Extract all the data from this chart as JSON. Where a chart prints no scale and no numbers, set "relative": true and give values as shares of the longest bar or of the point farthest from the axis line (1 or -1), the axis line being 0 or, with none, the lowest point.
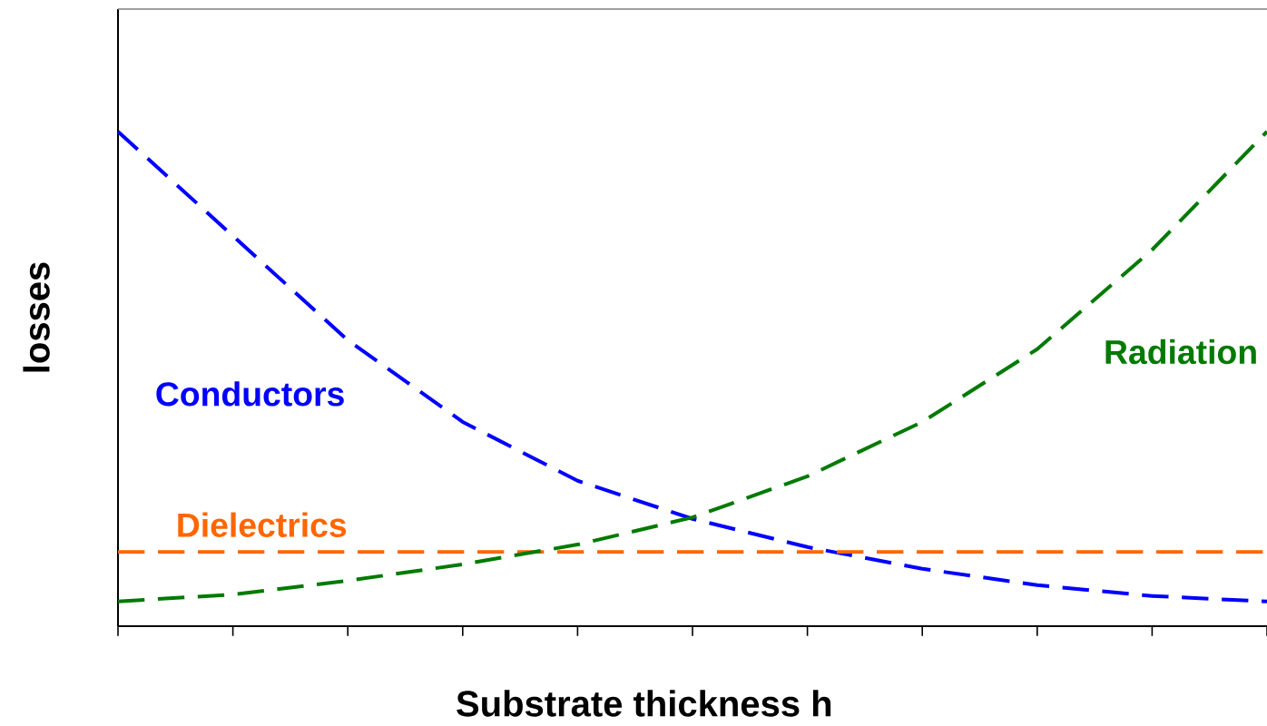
{
  "chart_data": {
    "type": "line",
    "relative": true,
    "xlabel": "Substrate thickness h",
    "ylabel": "losses",
    "categories": [
      null,
      null,
      null,
      null,
      null,
      null,
      null,
      null,
      null,
      null,
      null
    ],
    "series": [
      {
        "name": "Conductors",
        "color": "#0000ff",
        "values": [
          1.0,
          0.789,
          0.578,
          0.413,
          0.294,
          0.217,
          0.16,
          0.116,
          0.083,
          0.061,
          0.05
        ]
      },
      {
        "name": "Dielectrics",
        "color": "#ff6600",
        "values": [
          0.15,
          0.15,
          0.15,
          0.15,
          0.15,
          0.15,
          0.15,
          0.15,
          0.15,
          0.15,
          0.15
        ]
      },
      {
        "name": "Radiation",
        "color": "#007a00",
        "values": [
          0.05,
          0.064,
          0.092,
          0.125,
          0.165,
          0.22,
          0.303,
          0.413,
          0.56,
          0.761,
          1.0
        ]
      }
    ],
    "line_style": "dashed",
    "marker": "none"
  }
}
